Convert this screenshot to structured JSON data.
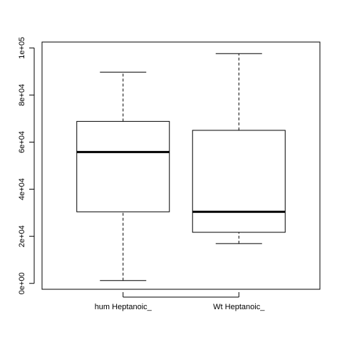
{
  "chart_data": {
    "type": "boxplot",
    "title": "",
    "xlabel": "",
    "ylabel": "",
    "ylim": [
      -2500,
      102500
    ],
    "y_ticks": [
      0,
      20000,
      40000,
      60000,
      80000,
      100000
    ],
    "y_tick_labels": [
      "0e+00",
      "2e+04",
      "4e+04",
      "6e+04",
      "8e+04",
      "1e+05"
    ],
    "categories": [
      "hum Heptanoic_",
      "Wt Heptanoic_"
    ],
    "boxes": [
      {
        "name": "hum Heptanoic_",
        "min": 1200,
        "q1": 30400,
        "median": 55800,
        "q3": 68800,
        "max": 89700
      },
      {
        "name": "Wt Heptanoic_",
        "min": 16900,
        "q1": 21700,
        "median": 30400,
        "q3": 65000,
        "max": 97600
      }
    ]
  }
}
